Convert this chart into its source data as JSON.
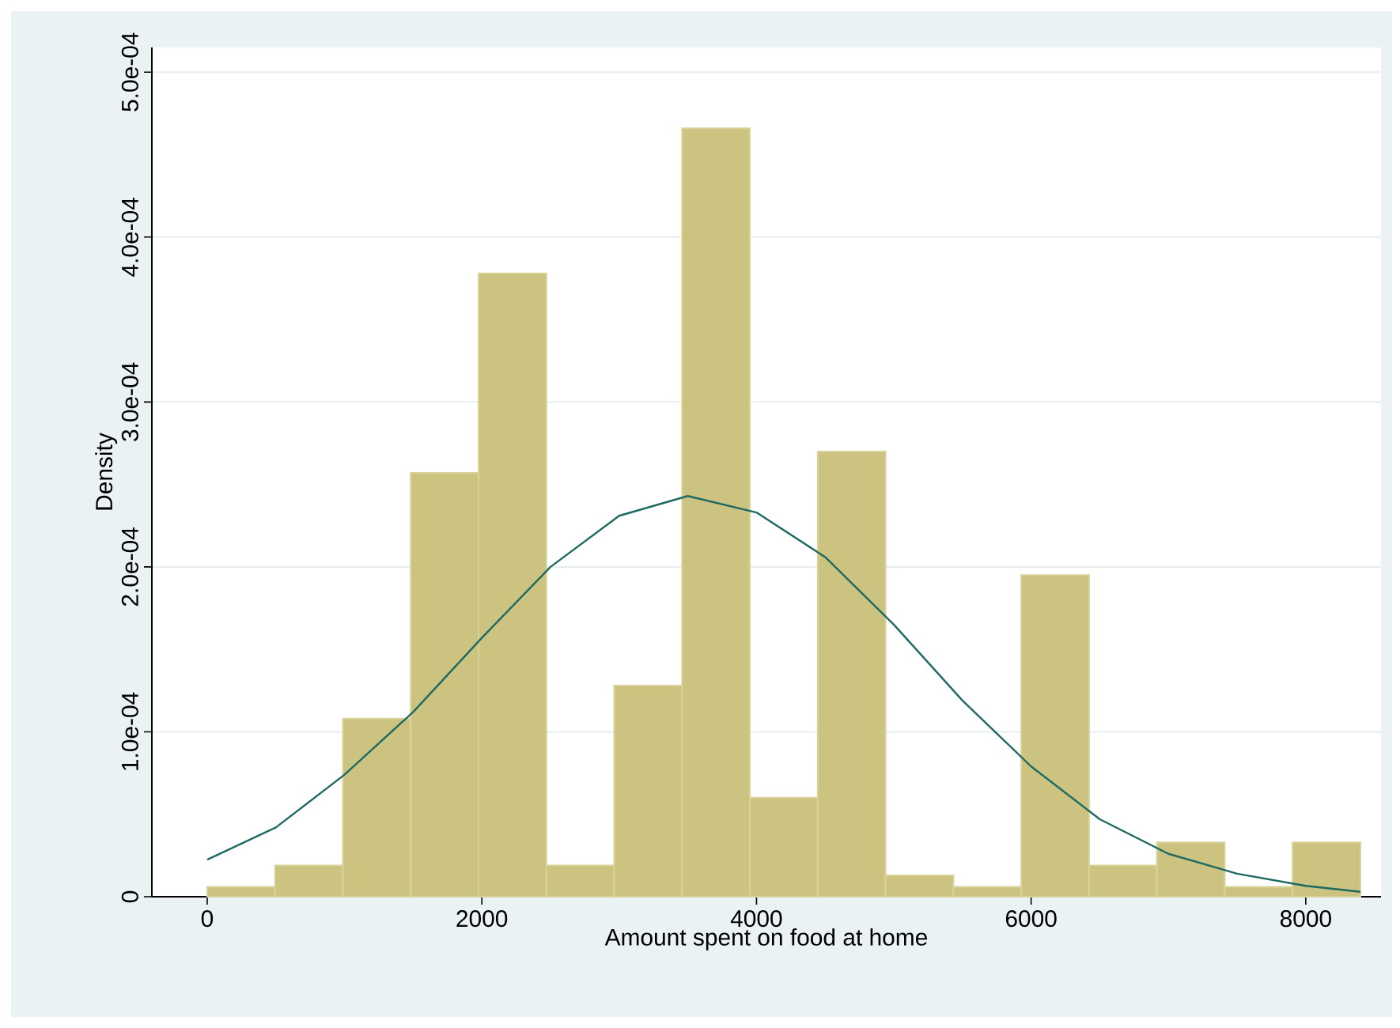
{
  "chart_data": {
    "type": "histogram",
    "xlabel": "Amount spent on food at home",
    "ylabel": "Density",
    "bins": [
      0,
      494,
      988,
      1482,
      1976,
      2470,
      2964,
      3458,
      3952,
      4446,
      4940,
      5434,
      5928,
      6422,
      6916,
      7410,
      7904,
      8398
    ],
    "values": [
      6e-06,
      1.9e-05,
      0.000108,
      0.000257,
      0.000378,
      1.9e-05,
      0.000128,
      0.000466,
      6e-05,
      0.00027,
      1.3e-05,
      6e-06,
      0.000195,
      1.9e-05,
      3.3e-05,
      6e-06,
      3.3e-05
    ],
    "color": "#cbc37f",
    "series": [
      {
        "type": "line",
        "color": "#1e6a63",
        "x": [
          0,
          500,
          1000,
          1500,
          2000,
          2500,
          3000,
          3500,
          4000,
          4500,
          5000,
          5500,
          6000,
          6500,
          7000,
          7500,
          8000,
          8398
        ],
        "values": [
          2.25e-05,
          4.2e-05,
          7.4e-05,
          0.000112,
          0.000157,
          0.0002,
          0.000231,
          0.000243,
          0.000233,
          0.000206,
          0.000165,
          0.000119,
          7.9e-05,
          4.7e-05,
          2.6e-05,
          1.4e-05,
          6.6e-06,
          3e-06
        ]
      }
    ],
    "xlim": [
      -403,
      8548
    ],
    "ylim": [
      0,
      0.000515
    ],
    "xticks": [
      0,
      2000,
      4000,
      6000,
      8000
    ],
    "yticks": [
      0,
      {
        "value": 0.0001,
        "label": "1.0e-04"
      },
      {
        "value": 0.0002,
        "label": "2.0e-04"
      },
      {
        "value": 0.0003,
        "label": "3.0e-04"
      },
      {
        "value": 0.0004,
        "label": "4.0e-04"
      },
      {
        "value": 0.0005,
        "label": "5.0e-04"
      }
    ],
    "grid": "y",
    "marker": "none",
    "line_style": "solid"
  }
}
